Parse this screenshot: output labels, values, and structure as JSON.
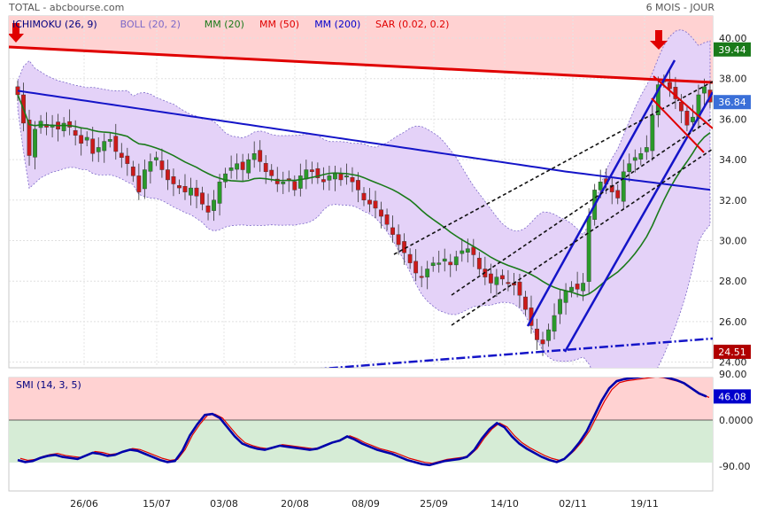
{
  "header": {
    "source": "TOTAL - abcbourse.com",
    "period": "6 MOIS - JOUR"
  },
  "legend": [
    {
      "label": "ICHIMOKU (26, 9)",
      "color": "#000080"
    },
    {
      "label": "BOLL (20, 2)",
      "color": "#7b68c8"
    },
    {
      "label": "MM (20)",
      "color": "#1a7a1a"
    },
    {
      "label": "MM (50)",
      "color": "#e00000"
    },
    {
      "label": "MM (200)",
      "color": "#0000cc"
    },
    {
      "label": "SAR (0.02, 0.2)",
      "color": "#e00000"
    }
  ],
  "price_ticks": [
    "40.00",
    "38.00",
    "36.00",
    "34.00",
    "32.00",
    "30.00",
    "28.00",
    "26.00",
    "24.00"
  ],
  "badges": {
    "high": {
      "label": "39.44",
      "value": 39.44,
      "color": "#1a7a1a"
    },
    "last": {
      "label": "36.84",
      "value": 36.84,
      "color": "#3a6fd8"
    },
    "low": {
      "label": "24.51",
      "value": 24.51,
      "color": "#b00000"
    }
  },
  "smi": {
    "title": "SMI (14, 3, 5)",
    "ticks": [
      "90.00",
      "0.0000",
      "-90.00"
    ],
    "last": {
      "label": "46.08",
      "value": 46.08,
      "color": "#0000cc"
    }
  },
  "x_labels": [
    "26/06",
    "15/07",
    "03/08",
    "20/08",
    "08/09",
    "25/09",
    "14/10",
    "02/11",
    "19/11"
  ],
  "chart_data": {
    "type": "line",
    "subtype": "candlestick",
    "ylim": [
      24,
      40.5
    ],
    "close": [
      37.2,
      35.8,
      34.2,
      35.5,
      35.9,
      35.6,
      35.7,
      35.5,
      35.8,
      35.6,
      35.2,
      34.8,
      35.1,
      34.3,
      34.6,
      34.9,
      35.0,
      34.4,
      34.1,
      33.8,
      33.2,
      32.4,
      33.5,
      33.9,
      34.1,
      33.5,
      33.0,
      32.8,
      32.6,
      32.4,
      32.6,
      32.2,
      31.8,
      31.4,
      32.0,
      32.9,
      33.3,
      33.6,
      33.8,
      33.5,
      34.0,
      34.3,
      33.9,
      33.4,
      33.2,
      32.8,
      32.9,
      33.0,
      32.5,
      33.2,
      33.5,
      33.4,
      33.1,
      32.9,
      33.2,
      33.3,
      33.0,
      33.2,
      32.9,
      32.5,
      32.0,
      31.8,
      31.6,
      31.2,
      30.8,
      30.3,
      29.8,
      29.4,
      28.9,
      28.4,
      28.2,
      28.6,
      28.9,
      28.9,
      29.1,
      28.8,
      29.2,
      29.5,
      29.6,
      29.3,
      28.6,
      28.2,
      27.9,
      28.2,
      28.1,
      27.9,
      27.8,
      27.3,
      26.6,
      25.8,
      25.1,
      24.9,
      25.6,
      26.3,
      27.1,
      27.5,
      27.7,
      27.6,
      27.9,
      31.2,
      32.5,
      32.9,
      32.8,
      32.4,
      32.1,
      33.4,
      33.8,
      34.1,
      34.3,
      34.6,
      36.2,
      37.7,
      37.9,
      37.5,
      37.0,
      36.4,
      35.7,
      36.1,
      37.2,
      37.6,
      36.84
    ],
    "sma20_last": 35.4,
    "sma50_last": 32.4,
    "smi_range": [
      -100,
      100
    ],
    "smi_last": 46.08
  }
}
